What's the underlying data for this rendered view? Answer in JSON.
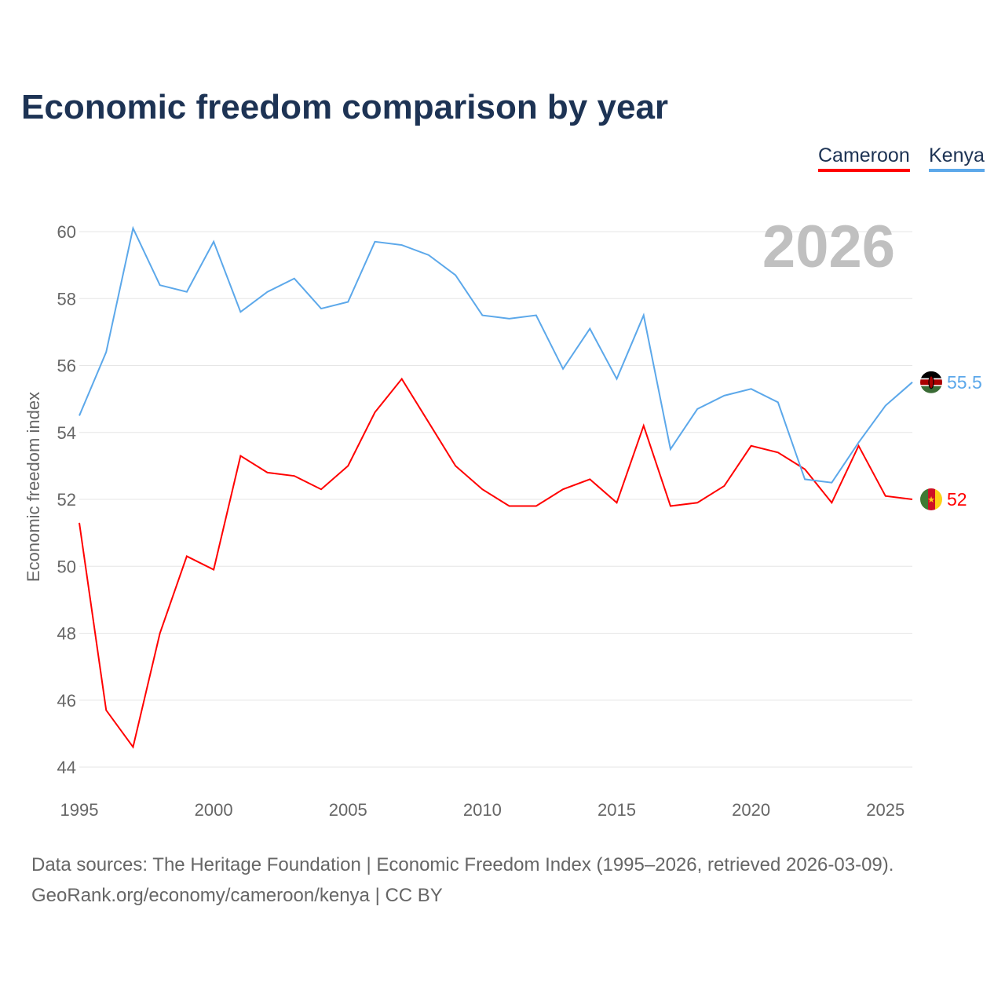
{
  "chart_data": {
    "type": "line",
    "title": "Economic freedom comparison by year",
    "xlabel": "",
    "ylabel": "Economic freedom index",
    "ylim": [
      44,
      60
    ],
    "xlim": [
      1995,
      2026
    ],
    "yticks": [
      44,
      46,
      48,
      50,
      52,
      54,
      56,
      58,
      60
    ],
    "xticks": [
      1995,
      2000,
      2005,
      2010,
      2015,
      2020,
      2025
    ],
    "grid": true,
    "legend_position": "top-right",
    "year_watermark": "2026",
    "x": [
      1995,
      1996,
      1997,
      1998,
      1999,
      2000,
      2001,
      2002,
      2003,
      2004,
      2005,
      2006,
      2007,
      2008,
      2009,
      2010,
      2011,
      2012,
      2013,
      2014,
      2015,
      2016,
      2017,
      2018,
      2019,
      2020,
      2021,
      2022,
      2023,
      2024,
      2025,
      2026
    ],
    "series": [
      {
        "name": "Cameroon",
        "color": "#ff0000",
        "end_label": "52",
        "flag": "cameroon-flag",
        "values": [
          51.3,
          45.7,
          44.6,
          48.0,
          50.3,
          49.9,
          53.3,
          52.8,
          52.7,
          52.3,
          53.0,
          54.6,
          55.6,
          54.3,
          53.0,
          52.3,
          51.8,
          51.8,
          52.3,
          52.6,
          51.9,
          54.2,
          51.8,
          51.9,
          52.4,
          53.6,
          53.4,
          52.9,
          51.9,
          53.6,
          52.1,
          52.0
        ]
      },
      {
        "name": "Kenya",
        "color": "#5ca8ea",
        "end_label": "55.5",
        "flag": "kenya-flag",
        "values": [
          54.5,
          56.4,
          60.1,
          58.4,
          58.2,
          59.7,
          57.6,
          58.2,
          58.6,
          57.7,
          57.9,
          59.7,
          59.6,
          59.3,
          58.7,
          57.5,
          57.4,
          57.5,
          55.9,
          57.1,
          55.6,
          57.5,
          53.5,
          54.7,
          55.1,
          55.3,
          54.9,
          52.6,
          52.5,
          53.7,
          54.8,
          55.5
        ]
      }
    ]
  },
  "footer": {
    "sources": "Data sources: The Heritage Foundation | Economic Freedom Index (1995–2026, retrieved 2026-03-09).",
    "credit": "GeoRank.org/economy/cameroon/kenya | CC BY"
  }
}
